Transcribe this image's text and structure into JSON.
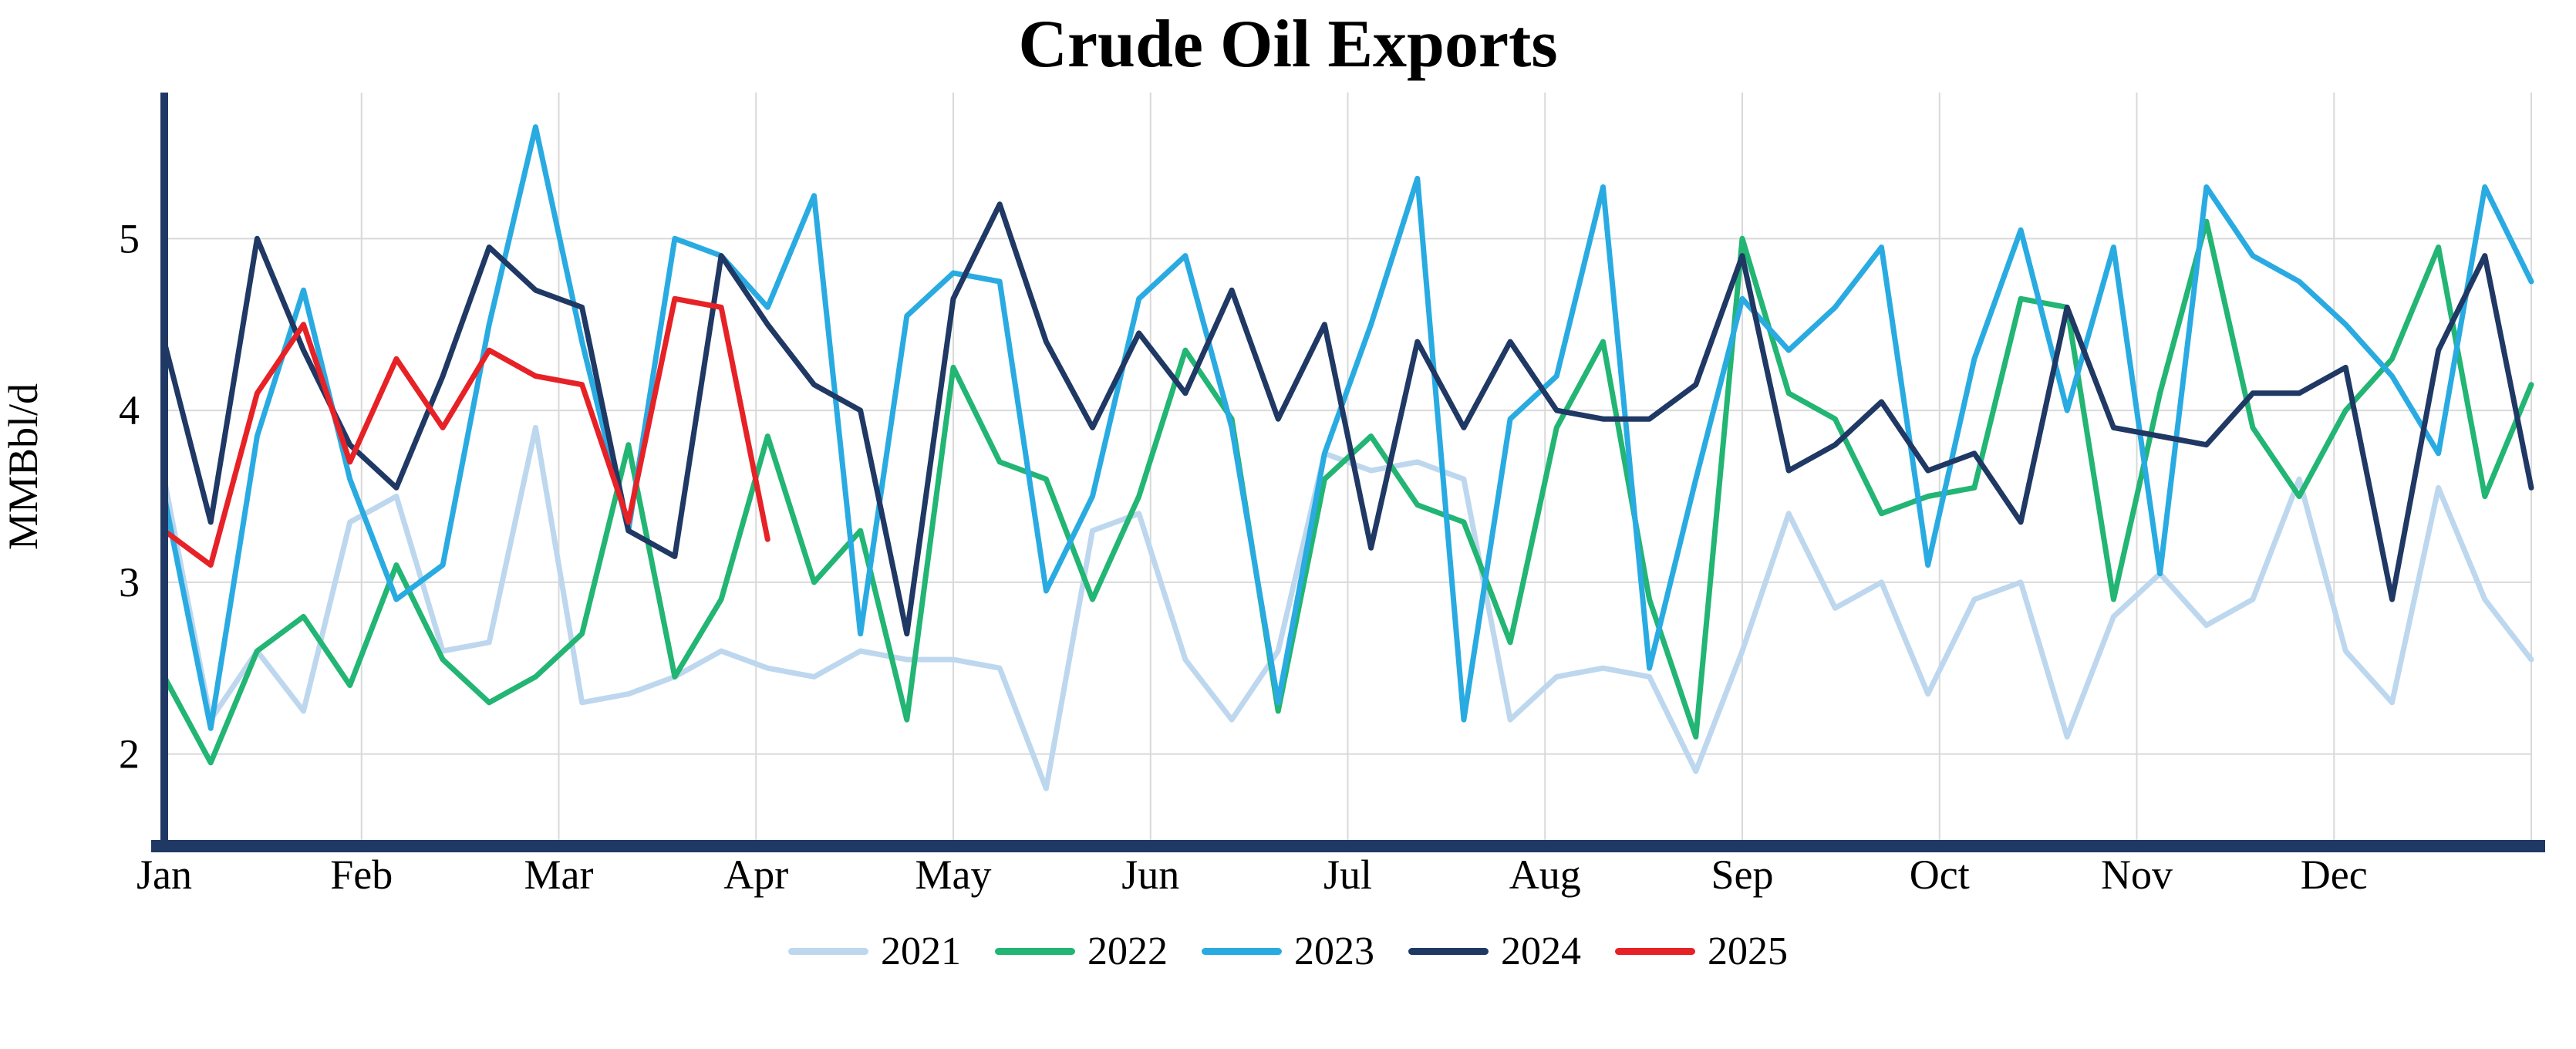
{
  "chart_data": {
    "type": "line",
    "title": "Crude Oil Exports",
    "ylabel": "MMBbl/d",
    "xlabel": "",
    "x_unit": "week-of-year",
    "weeks_per_year": 52,
    "months": [
      "Jan",
      "Feb",
      "Mar",
      "Apr",
      "May",
      "Jun",
      "Jul",
      "Aug",
      "Sep",
      "Oct",
      "Nov",
      "Dec"
    ],
    "yticks": [
      2,
      3,
      4,
      5
    ],
    "ylim": [
      1.5,
      5.85
    ],
    "grid": true,
    "legend_position": "bottom",
    "axis_color": "#1F3864",
    "grid_color": "#D9D9D9",
    "series": [
      {
        "name": "2021",
        "color": "#BDD7EE",
        "values": [
          3.6,
          2.2,
          2.6,
          2.25,
          3.35,
          3.5,
          2.6,
          2.65,
          3.9,
          2.3,
          2.35,
          2.45,
          2.6,
          2.5,
          2.45,
          2.6,
          2.55,
          2.55,
          2.5,
          1.8,
          3.3,
          3.4,
          2.55,
          2.2,
          2.6,
          3.75,
          3.65,
          3.7,
          3.6,
          2.2,
          2.45,
          2.5,
          2.45,
          1.9,
          2.6,
          3.4,
          2.85,
          3.0,
          2.35,
          2.9,
          3.0,
          2.1,
          2.8,
          3.05,
          2.75,
          2.9,
          3.6,
          2.6,
          2.3,
          3.55,
          2.9,
          2.55
        ]
      },
      {
        "name": "2022",
        "color": "#22B573",
        "values": [
          2.45,
          1.95,
          2.6,
          2.8,
          2.4,
          3.1,
          2.55,
          2.3,
          2.45,
          2.7,
          3.8,
          2.45,
          2.9,
          3.85,
          3.0,
          3.3,
          2.2,
          4.25,
          3.7,
          3.6,
          2.9,
          3.5,
          4.35,
          3.95,
          2.25,
          3.6,
          3.85,
          3.45,
          3.35,
          2.65,
          3.9,
          4.4,
          2.9,
          2.1,
          5.0,
          4.1,
          3.95,
          3.4,
          3.5,
          3.55,
          4.65,
          4.6,
          2.9,
          4.1,
          5.1,
          3.9,
          3.5,
          4.0,
          4.3,
          4.95,
          3.5,
          4.15
        ]
      },
      {
        "name": "2023",
        "color": "#29ABE2",
        "values": [
          3.5,
          2.15,
          3.85,
          4.7,
          3.6,
          2.9,
          3.1,
          4.5,
          5.65,
          4.4,
          3.3,
          5.0,
          4.9,
          4.6,
          5.25,
          2.7,
          4.55,
          4.8,
          4.75,
          2.95,
          3.5,
          4.65,
          4.9,
          3.9,
          2.3,
          3.75,
          4.5,
          5.35,
          2.2,
          3.95,
          4.2,
          5.3,
          2.5,
          3.6,
          4.65,
          4.35,
          4.6,
          4.95,
          3.1,
          4.3,
          5.05,
          4.0,
          4.95,
          3.05,
          5.3,
          4.9,
          4.75,
          4.5,
          4.2,
          3.75,
          5.3,
          4.75
        ]
      },
      {
        "name": "2024",
        "color": "#1F3864",
        "values": [
          4.4,
          3.35,
          5.0,
          4.35,
          3.8,
          3.55,
          4.2,
          4.95,
          4.7,
          4.6,
          3.3,
          3.15,
          4.9,
          4.5,
          4.15,
          4.0,
          2.7,
          4.65,
          5.2,
          4.4,
          3.9,
          4.45,
          4.1,
          4.7,
          3.95,
          4.5,
          3.2,
          4.4,
          3.9,
          4.4,
          4.0,
          3.95,
          3.95,
          4.15,
          4.9,
          3.65,
          3.8,
          4.05,
          3.65,
          3.75,
          3.35,
          4.6,
          3.9,
          3.85,
          3.8,
          4.1,
          4.1,
          4.25,
          2.9,
          4.35,
          4.9,
          3.55
        ]
      },
      {
        "name": "2025",
        "color": "#E62227",
        "values": [
          3.3,
          3.1,
          4.1,
          4.5,
          3.7,
          4.3,
          3.9,
          4.35,
          4.2,
          4.15,
          3.35,
          4.65,
          4.6,
          3.25
        ]
      }
    ]
  }
}
